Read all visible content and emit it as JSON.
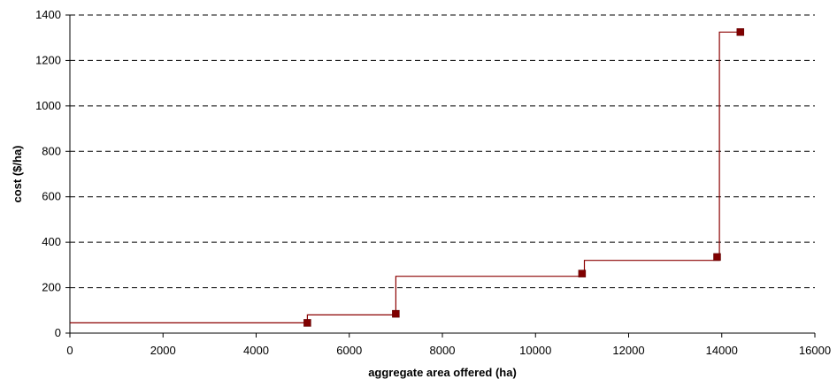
{
  "chart_data": {
    "type": "line",
    "xlabel": "aggregate area offered (ha)",
    "ylabel": "cost ($/ha)",
    "xlim": [
      0,
      16000
    ],
    "ylim": [
      0,
      1400
    ],
    "xticks": [
      0,
      2000,
      4000,
      6000,
      8000,
      10000,
      12000,
      14000,
      16000
    ],
    "yticks": [
      0,
      200,
      400,
      600,
      800,
      1000,
      1200,
      1400
    ],
    "grid": "horizontal dashed",
    "legend": "none",
    "series": [
      {
        "style": "step",
        "color": "#8b0000",
        "points": [
          {
            "x": 0,
            "y": 45
          },
          {
            "x": 5100,
            "y": 45
          },
          {
            "x": 5100,
            "y": 80
          },
          {
            "x": 7000,
            "y": 80
          },
          {
            "x": 7000,
            "y": 250
          },
          {
            "x": 11050,
            "y": 250
          },
          {
            "x": 11050,
            "y": 320
          },
          {
            "x": 13950,
            "y": 320
          },
          {
            "x": 13950,
            "y": 1325
          },
          {
            "x": 14400,
            "y": 1325
          }
        ]
      },
      {
        "style": "markers",
        "marker": "square",
        "color": "#800000",
        "points": [
          {
            "x": 5100,
            "y": 45
          },
          {
            "x": 7000,
            "y": 85
          },
          {
            "x": 11000,
            "y": 262
          },
          {
            "x": 13900,
            "y": 335
          },
          {
            "x": 14400,
            "y": 1325
          }
        ]
      }
    ]
  }
}
